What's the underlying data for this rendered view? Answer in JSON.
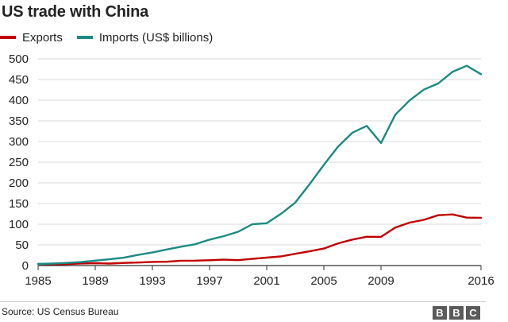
{
  "chart_data": {
    "type": "line",
    "title": "US trade with China",
    "x": [
      1985,
      1986,
      1987,
      1988,
      1989,
      1990,
      1991,
      1992,
      1993,
      1994,
      1995,
      1996,
      1997,
      1998,
      1999,
      2000,
      2001,
      2002,
      2003,
      2004,
      2005,
      2006,
      2007,
      2008,
      2009,
      2010,
      2011,
      2012,
      2013,
      2014,
      2015,
      2016
    ],
    "x_ticks": [
      "1985",
      "1989",
      "1993",
      "1997",
      "2001",
      "2005",
      "2009",
      "2016"
    ],
    "y_ticks": [
      "0",
      "50",
      "100",
      "150",
      "200",
      "250",
      "300",
      "350",
      "400",
      "450",
      "500"
    ],
    "xlim": [
      1985,
      2016
    ],
    "ylim": [
      0,
      500
    ],
    "grid": true,
    "legend_position": "top-left",
    "series": [
      {
        "name": "Exports",
        "color": "#c00000",
        "values": [
          3.9,
          3.1,
          3.5,
          5.0,
          5.8,
          4.8,
          6.3,
          7.4,
          8.8,
          9.3,
          11.8,
          12.0,
          12.9,
          14.2,
          13.1,
          16.2,
          19.2,
          22.1,
          28.4,
          34.4,
          41.2,
          53.7,
          62.9,
          69.7,
          69.5,
          91.9,
          103.9,
          110.5,
          121.7,
          123.7,
          115.9,
          115.6
        ]
      },
      {
        "name": "Imports (US$ billions)",
        "color": "#1b8a82",
        "values": [
          3.9,
          4.8,
          6.3,
          8.5,
          12.0,
          15.2,
          19.0,
          25.7,
          31.5,
          38.8,
          45.6,
          51.5,
          62.6,
          71.2,
          81.8,
          100.0,
          102.3,
          125.2,
          152.4,
          196.7,
          243.5,
          287.8,
          321.4,
          337.8,
          296.4,
          364.9,
          399.4,
          425.6,
          440.4,
          468.5,
          483.2,
          462.8
        ]
      }
    ]
  },
  "source": "Source: US Census Bureau",
  "logo": [
    "B",
    "B",
    "C"
  ]
}
